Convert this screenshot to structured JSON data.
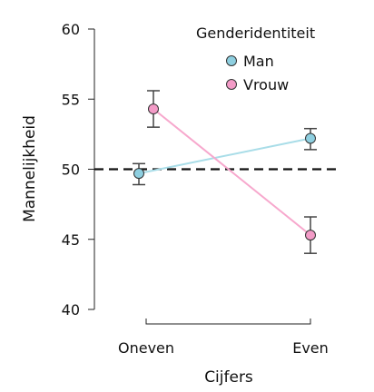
{
  "chart_data": {
    "type": "line",
    "xlabel": "Cijfers",
    "ylabel": "Mannelijkheid",
    "categories": [
      "Oneven",
      "Even"
    ],
    "ylim": [
      40,
      60
    ],
    "yticks": [
      "40",
      "45",
      "50",
      "55",
      "60"
    ],
    "reference_line": 50,
    "grid": false,
    "legend": {
      "title": "Genderidentiteit",
      "placement": "top-right",
      "entries": [
        "Man",
        "Vrouw"
      ]
    },
    "series": [
      {
        "name": "Man",
        "color": "#a9dde8",
        "marker_color": "#8ecfe0",
        "values": [
          49.7,
          52.2
        ],
        "error_low": [
          48.9,
          51.4
        ],
        "error_high": [
          50.4,
          52.9
        ]
      },
      {
        "name": "Vrouw",
        "color": "#f7a8cd",
        "marker_color": "#f39bc7",
        "values": [
          54.3,
          45.3
        ],
        "error_low": [
          53.0,
          44.0
        ],
        "error_high": [
          55.6,
          46.6
        ]
      }
    ]
  }
}
